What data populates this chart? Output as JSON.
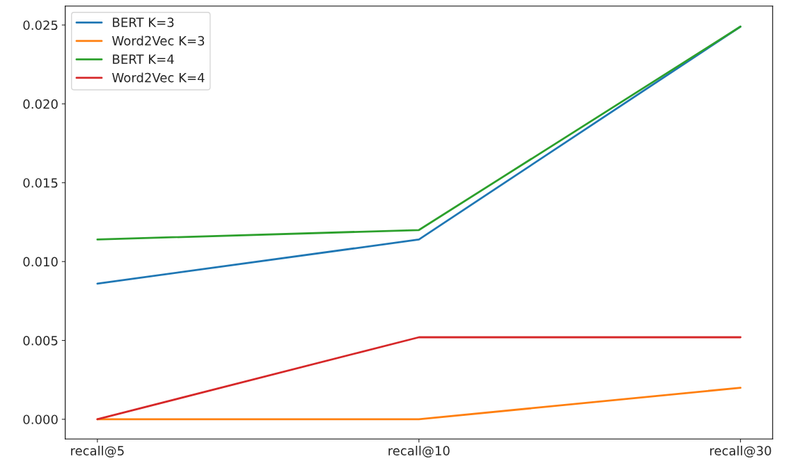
{
  "chart_data": {
    "type": "line",
    "categories": [
      "recall@5",
      "recall@10",
      "recall@30"
    ],
    "series": [
      {
        "name": "BERT K=3",
        "color": "#1f77b4",
        "values": [
          0.0086,
          0.0114,
          0.0249
        ]
      },
      {
        "name": "Word2Vec K=3",
        "color": "#ff7f0e",
        "values": [
          0.0,
          0.0,
          0.002
        ]
      },
      {
        "name": "BERT K=4",
        "color": "#2ca02c",
        "values": [
          0.0114,
          0.012,
          0.0249
        ]
      },
      {
        "name": "Word2Vec K=4",
        "color": "#d62728",
        "values": [
          0.0,
          0.0052,
          0.0052
        ]
      }
    ],
    "ylim": [
      -0.00125,
      0.0262
    ],
    "yticks": [
      {
        "value": 0,
        "label": "0.000"
      },
      {
        "value": 0.005,
        "label": "0.005"
      },
      {
        "value": 0.01,
        "label": "0.010"
      },
      {
        "value": 0.015,
        "label": "0.015"
      },
      {
        "value": 0.02,
        "label": "0.020"
      },
      {
        "value": 0.025,
        "label": "0.025"
      }
    ],
    "legend": "top left",
    "grid": false,
    "marker": "none",
    "line_style": "solid"
  }
}
